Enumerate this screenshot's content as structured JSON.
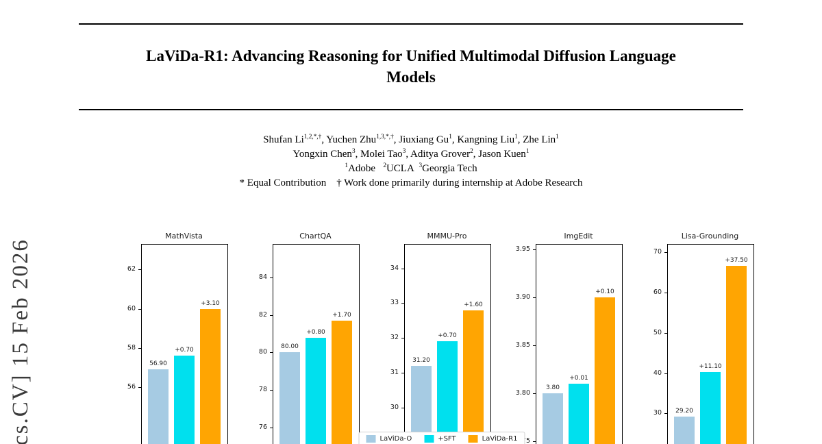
{
  "arxiv_watermark": "cs.CV]  15 Feb 2026",
  "paper": {
    "title_lines": [
      "LaViDa-R1: Advancing Reasoning for Unified Multimodal Diffusion Language",
      "Models"
    ]
  },
  "authors": {
    "lines": [
      [
        {
          "t": "Shufan Li"
        },
        {
          "t": "1,2,*,†",
          "sup": true
        },
        {
          "t": ", Yuchen Zhu"
        },
        {
          "t": "1,3,*,†",
          "sup": true
        },
        {
          "t": ", Jiuxiang Gu"
        },
        {
          "t": "1",
          "sup": true
        },
        {
          "t": ", Kangning Liu"
        },
        {
          "t": "1",
          "sup": true
        },
        {
          "t": ", Zhe Lin"
        },
        {
          "t": "1",
          "sup": true
        }
      ],
      [
        {
          "t": "Yongxin Chen"
        },
        {
          "t": "3",
          "sup": true
        },
        {
          "t": ", Molei Tao"
        },
        {
          "t": "3",
          "sup": true
        },
        {
          "t": ", Aditya Grover"
        },
        {
          "t": "2",
          "sup": true
        },
        {
          "t": ", Jason Kuen"
        },
        {
          "t": "1",
          "sup": true
        }
      ],
      [
        {
          "t": "1",
          "sup": true
        },
        {
          "t": "Adobe   "
        },
        {
          "t": "2",
          "sup": true
        },
        {
          "t": "UCLA  "
        },
        {
          "t": "3",
          "sup": true
        },
        {
          "t": "Georgia Tech"
        }
      ],
      [
        {
          "t": "* Equal Contribution    † Work done primarily during internship at Adobe Research"
        }
      ]
    ]
  },
  "legend": {
    "entries": [
      {
        "label": "LaViDa-O",
        "color": "#a6cbe3"
      },
      {
        "label": "+SFT",
        "color": "#00e0ee"
      },
      {
        "label": "LaViDa-R1",
        "color": "#ffa502"
      }
    ]
  },
  "chart_data": [
    {
      "type": "bar",
      "title": "MathVista",
      "categories": [
        "LaViDa-O",
        "+SFT",
        "LaViDa-R1"
      ],
      "values": [
        56.9,
        57.6,
        60.0
      ],
      "bar_labels": [
        "56.90",
        "+0.70",
        "+3.10"
      ],
      "yticks": [
        "56",
        "58",
        "60",
        "62"
      ],
      "ylim": [
        53.0,
        63.3
      ]
    },
    {
      "type": "bar",
      "title": "ChartQA",
      "categories": [
        "LaViDa-O",
        "+SFT",
        "LaViDa-R1"
      ],
      "values": [
        80.0,
        80.8,
        81.7
      ],
      "bar_labels": [
        "80.00",
        "+0.80",
        "+1.70"
      ],
      "yticks": [
        "76",
        "78",
        "80",
        "82",
        "84"
      ],
      "ylim": [
        75.0,
        85.8
      ]
    },
    {
      "type": "bar",
      "title": "MMMU-Pro",
      "categories": [
        "LaViDa-O",
        "+SFT",
        "LaViDa-R1"
      ],
      "values": [
        31.2,
        31.9,
        32.8
      ],
      "bar_labels": [
        "31.20",
        "+0.70",
        "+1.60"
      ],
      "yticks": [
        "30",
        "31",
        "32",
        "33",
        "34"
      ],
      "ylim": [
        28.9,
        34.7
      ]
    },
    {
      "type": "bar",
      "title": "ImgEdit",
      "categories": [
        "LaViDa-O",
        "+SFT",
        "LaViDa-R1"
      ],
      "values": [
        3.8,
        3.81,
        3.9
      ],
      "bar_labels": [
        "3.80",
        "+0.01",
        "+0.10"
      ],
      "yticks": [
        "3.75",
        "3.80",
        "3.85",
        "3.90",
        "3.95"
      ],
      "ylim": [
        3.745,
        3.956
      ]
    },
    {
      "type": "bar",
      "title": "Lisa-Grounding",
      "categories": [
        "LaViDa-O",
        "+SFT",
        "LaViDa-R1"
      ],
      "values": [
        29.2,
        40.3,
        66.7
      ],
      "bar_labels": [
        "29.20",
        "+11.10",
        "+37.50"
      ],
      "yticks": [
        "30",
        "40",
        "50",
        "60",
        "70"
      ],
      "ylim": [
        21.9,
        72.1
      ]
    }
  ]
}
